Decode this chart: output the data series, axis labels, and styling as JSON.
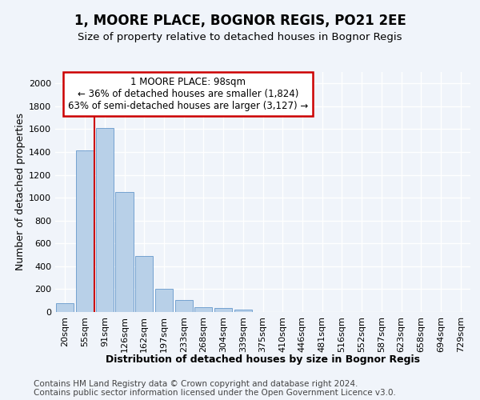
{
  "title": "1, MOORE PLACE, BOGNOR REGIS, PO21 2EE",
  "subtitle": "Size of property relative to detached houses in Bognor Regis",
  "xlabel": "Distribution of detached houses by size in Bognor Regis",
  "ylabel": "Number of detached properties",
  "bin_labels": [
    "20sqm",
    "55sqm",
    "91sqm",
    "126sqm",
    "162sqm",
    "197sqm",
    "233sqm",
    "268sqm",
    "304sqm",
    "339sqm",
    "375sqm",
    "410sqm",
    "446sqm",
    "481sqm",
    "516sqm",
    "552sqm",
    "587sqm",
    "623sqm",
    "658sqm",
    "694sqm",
    "729sqm"
  ],
  "bar_values": [
    80,
    1415,
    1610,
    1050,
    490,
    200,
    105,
    40,
    35,
    20,
    0,
    0,
    0,
    0,
    0,
    0,
    0,
    0,
    0,
    0,
    0
  ],
  "bar_color": "#b8d0e8",
  "bar_edge_color": "#6699cc",
  "property_line_color": "#cc0000",
  "annotation_line1": "1 MOORE PLACE: 98sqm",
  "annotation_line2": "← 36% of detached houses are smaller (1,824)",
  "annotation_line3": "63% of semi-detached houses are larger (3,127) →",
  "annotation_box_color": "#ffffff",
  "annotation_box_edge_color": "#cc0000",
  "ylim": [
    0,
    2100
  ],
  "yticks": [
    0,
    200,
    400,
    600,
    800,
    1000,
    1200,
    1400,
    1600,
    1800,
    2000
  ],
  "footer_line1": "Contains HM Land Registry data © Crown copyright and database right 2024.",
  "footer_line2": "Contains public sector information licensed under the Open Government Licence v3.0.",
  "background_color": "#f0f4fa",
  "plot_background_color": "#f0f4fa",
  "grid_color": "#ffffff",
  "title_fontsize": 12,
  "subtitle_fontsize": 9.5,
  "axis_label_fontsize": 9,
  "tick_fontsize": 8,
  "footer_fontsize": 7.5
}
